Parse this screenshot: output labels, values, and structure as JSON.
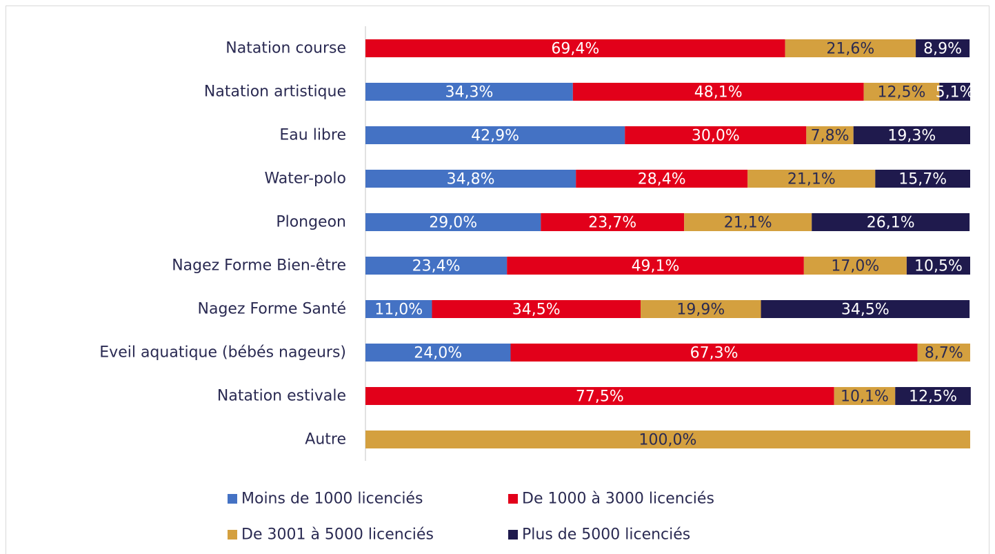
{
  "chart_data": {
    "type": "stacked-barh",
    "categories": [
      "Natation course",
      "Natation artistique",
      "Eau libre",
      "Water-polo",
      "Plongeon",
      "Nagez Forme Bien-être",
      "Nagez Forme Santé",
      "Eveil aquatique (bébés nageurs)",
      "Natation estivale",
      "Autre"
    ],
    "xlim": [
      0,
      100
    ],
    "series": [
      {
        "name": "Moins de 1000 licenciés",
        "color": "#4472c4",
        "label_color": "#ffffff",
        "values": [
          null,
          34.3,
          42.9,
          34.8,
          29.0,
          23.4,
          11.0,
          24.0,
          null,
          null
        ],
        "value_labels": [
          null,
          "34,3%",
          "42,9%",
          "34,8%",
          "29,0%",
          "23,4%",
          "11,0%",
          "24,0%",
          null,
          null
        ]
      },
      {
        "name": "De 1000 à 3000 licenciés",
        "color": "#e2001a",
        "label_color": "#ffffff",
        "values": [
          69.4,
          48.1,
          30.0,
          28.4,
          23.7,
          49.1,
          34.5,
          67.3,
          77.5,
          null
        ],
        "value_labels": [
          "69,4%",
          "48,1%",
          "30,0%",
          "28,4%",
          "23,7%",
          "49,1%",
          "34,5%",
          "67,3%",
          "77,5%",
          null
        ]
      },
      {
        "name": "De 3001 à 5000 licenciés",
        "color": "#d4a03f",
        "label_color": "#2a2a52",
        "values": [
          21.6,
          12.5,
          7.8,
          21.1,
          21.1,
          17.0,
          19.9,
          8.7,
          10.1,
          100.0
        ],
        "value_labels": [
          "21,6%",
          "12,5%",
          "7,8%",
          "21,1%",
          "21,1%",
          "17,0%",
          "19,9%",
          "8,7%",
          "10,1%",
          "100,0%"
        ]
      },
      {
        "name": "Plus de 5000 licenciés",
        "color": "#1f1a4d",
        "label_color": "#ffffff",
        "values": [
          8.9,
          5.1,
          19.3,
          15.7,
          26.1,
          10.5,
          34.5,
          null,
          12.5,
          null
        ],
        "value_labels": [
          "8,9%",
          "5,1%",
          "19,3%",
          "15,7%",
          "26,1%",
          "10,5%",
          "34,5%",
          null,
          "12,5%",
          null
        ]
      }
    ]
  }
}
